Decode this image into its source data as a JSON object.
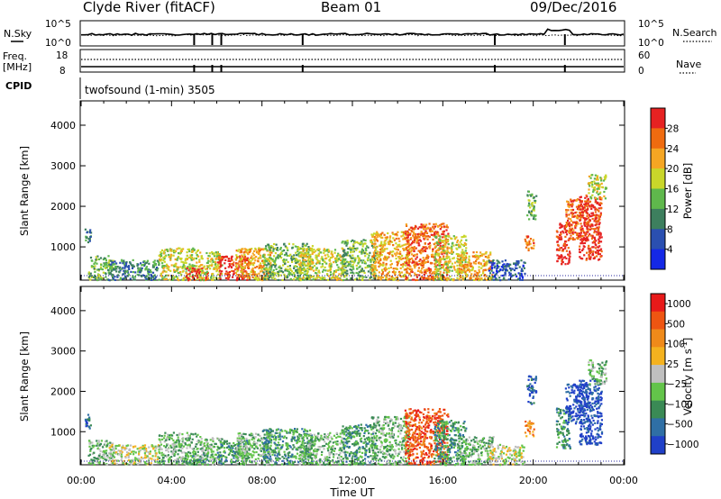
{
  "header": {
    "station": "Clyde River (fitACF)",
    "beam": "Beam 01",
    "date": "09/Dec/2016"
  },
  "status_panel": {
    "left_noise_label": "N.Sky",
    "right_noise_label": "N.Search",
    "noise_ticks_left": [
      "10^5",
      "10^0"
    ],
    "noise_ticks_right": [
      "10^5",
      "10^0"
    ],
    "freq_label_line1": "Freq.",
    "freq_label_line2": "[MHz]",
    "freq_ticks": [
      "18",
      "8"
    ],
    "nave_label": "Nave",
    "nave_ticks": [
      "60",
      "0"
    ],
    "cpid_label": "CPID",
    "cpid_text": "twofsound (1-min) 3505"
  },
  "colors": {
    "power_scale": [
      "#1428e6",
      "#2a4fb0",
      "#3d7f5e",
      "#5fb84c",
      "#c9d62a",
      "#f5a623",
      "#ef6b10",
      "#e62222"
    ],
    "velocity_scale": [
      "#2040c8",
      "#2f6fa5",
      "#3a8a55",
      "#63c44a",
      "#bfbfbf",
      "#f4b21f",
      "#ef8a1a",
      "#ee5512",
      "#e81a1a"
    ]
  },
  "chart_data": [
    {
      "type": "heatmap",
      "name": "power",
      "xlabel": "",
      "ylabel": "Slant Range [km]",
      "x_ticks": [
        "00:00",
        "04:00",
        "08:00",
        "12:00",
        "16:00",
        "20:00",
        "00:00"
      ],
      "xlim": [
        0,
        24
      ],
      "ylim": [
        180,
        4600
      ],
      "y_ticks": [
        1000,
        2000,
        3000,
        4000
      ],
      "colorbar_label": "Power [dB]",
      "colorbar_ticks": [
        "4",
        "8",
        "12",
        "16",
        "20",
        "24",
        "28"
      ],
      "colorbar_range": [
        0,
        32
      ],
      "echo_regions": [
        {
          "t": [
            0.1,
            0.4
          ],
          "r": [
            1100,
            1500
          ],
          "level": 2
        },
        {
          "t": [
            0.3,
            1.4
          ],
          "r": [
            200,
            800
          ],
          "level": 3
        },
        {
          "t": [
            1.2,
            3.4
          ],
          "r": [
            200,
            700
          ],
          "level": 2
        },
        {
          "t": [
            3.4,
            5.2
          ],
          "r": [
            200,
            1000
          ],
          "level": 4
        },
        {
          "t": [
            4.6,
            5.6
          ],
          "r": [
            200,
            500
          ],
          "level": 7
        },
        {
          "t": [
            5.2,
            6.2
          ],
          "r": [
            200,
            900
          ],
          "level": 4
        },
        {
          "t": [
            6.0,
            7.4
          ],
          "r": [
            200,
            800
          ],
          "level": 7
        },
        {
          "t": [
            6.8,
            8.4
          ],
          "r": [
            200,
            1000
          ],
          "level": 5
        },
        {
          "t": [
            8.0,
            10.2
          ],
          "r": [
            200,
            1100
          ],
          "level": 3
        },
        {
          "t": [
            9.6,
            11.6
          ],
          "r": [
            200,
            1000
          ],
          "level": 4
        },
        {
          "t": [
            11.5,
            13.0
          ],
          "r": [
            200,
            1200
          ],
          "level": 3
        },
        {
          "t": [
            12.8,
            14.5
          ],
          "r": [
            200,
            1400
          ],
          "level": 5
        },
        {
          "t": [
            14.3,
            16.2
          ],
          "r": [
            200,
            1600
          ],
          "level": 6
        },
        {
          "t": [
            15.6,
            17.0
          ],
          "r": [
            200,
            1300
          ],
          "level": 4
        },
        {
          "t": [
            16.6,
            18.2
          ],
          "r": [
            200,
            900
          ],
          "level": 5
        },
        {
          "t": [
            18.0,
            19.6
          ],
          "r": [
            200,
            700
          ],
          "level": 1
        },
        {
          "t": [
            19.6,
            20.0
          ],
          "r": [
            900,
            1300
          ],
          "level": 6
        },
        {
          "t": [
            19.7,
            20.1
          ],
          "r": [
            1700,
            2400
          ],
          "level": 3
        },
        {
          "t": [
            21.0,
            21.6
          ],
          "r": [
            600,
            1600
          ],
          "level": 7
        },
        {
          "t": [
            21.4,
            22.4
          ],
          "r": [
            1200,
            2200
          ],
          "level": 6
        },
        {
          "t": [
            22.0,
            23.0
          ],
          "r": [
            700,
            2300
          ],
          "level": 7
        },
        {
          "t": [
            22.4,
            23.2
          ],
          "r": [
            2200,
            2800
          ],
          "level": 4
        }
      ]
    },
    {
      "type": "heatmap",
      "name": "velocity",
      "xlabel": "Time UT",
      "ylabel": "Slant Range [km]",
      "x_ticks": [
        "00:00",
        "04:00",
        "08:00",
        "12:00",
        "16:00",
        "20:00",
        "00:00"
      ],
      "xlim": [
        0,
        24
      ],
      "ylim": [
        180,
        4600
      ],
      "y_ticks": [
        1000,
        2000,
        3000,
        4000
      ],
      "colorbar_label": "Velocity [m s",
      "colorbar_label_sup": "-1",
      "colorbar_label_end": "]",
      "colorbar_ticks": [
        "1000",
        "500",
        "100",
        "25",
        "−25",
        "−100",
        "−500",
        "−1000"
      ],
      "echo_regions": [
        {
          "t": [
            0.1,
            0.4
          ],
          "r": [
            1100,
            1500
          ],
          "level": 1
        },
        {
          "t": [
            0.3,
            1.4
          ],
          "r": [
            200,
            800
          ],
          "level": 3
        },
        {
          "t": [
            1.2,
            3.4
          ],
          "r": [
            200,
            700
          ],
          "level": 4
        },
        {
          "t": [
            3.4,
            5.2
          ],
          "r": [
            200,
            1000
          ],
          "level": 3
        },
        {
          "t": [
            4.6,
            5.6
          ],
          "r": [
            200,
            500
          ],
          "level": 2
        },
        {
          "t": [
            5.2,
            6.2
          ],
          "r": [
            200,
            900
          ],
          "level": 3
        },
        {
          "t": [
            6.0,
            7.4
          ],
          "r": [
            200,
            800
          ],
          "level": 2
        },
        {
          "t": [
            6.8,
            8.4
          ],
          "r": [
            200,
            1000
          ],
          "level": 3
        },
        {
          "t": [
            8.0,
            10.2
          ],
          "r": [
            200,
            1100
          ],
          "level": 2
        },
        {
          "t": [
            9.6,
            11.6
          ],
          "r": [
            200,
            1000
          ],
          "level": 3
        },
        {
          "t": [
            11.5,
            13.0
          ],
          "r": [
            200,
            1200
          ],
          "level": 2
        },
        {
          "t": [
            12.8,
            14.5
          ],
          "r": [
            200,
            1400
          ],
          "level": 3
        },
        {
          "t": [
            14.3,
            16.2
          ],
          "r": [
            200,
            1600
          ],
          "level": 7
        },
        {
          "t": [
            15.6,
            17.0
          ],
          "r": [
            200,
            1300
          ],
          "level": 2
        },
        {
          "t": [
            16.6,
            18.2
          ],
          "r": [
            200,
            900
          ],
          "level": 3
        },
        {
          "t": [
            18.0,
            19.6
          ],
          "r": [
            200,
            700
          ],
          "level": 4
        },
        {
          "t": [
            19.6,
            20.0
          ],
          "r": [
            900,
            1300
          ],
          "level": 6
        },
        {
          "t": [
            19.7,
            20.1
          ],
          "r": [
            1700,
            2400
          ],
          "level": 1
        },
        {
          "t": [
            21.0,
            21.6
          ],
          "r": [
            600,
            1600
          ],
          "level": 2
        },
        {
          "t": [
            21.4,
            22.4
          ],
          "r": [
            1200,
            2200
          ],
          "level": 0
        },
        {
          "t": [
            22.0,
            23.0
          ],
          "r": [
            700,
            2300
          ],
          "level": 0
        },
        {
          "t": [
            22.4,
            23.2
          ],
          "r": [
            2200,
            2800
          ],
          "level": 3
        }
      ]
    }
  ]
}
